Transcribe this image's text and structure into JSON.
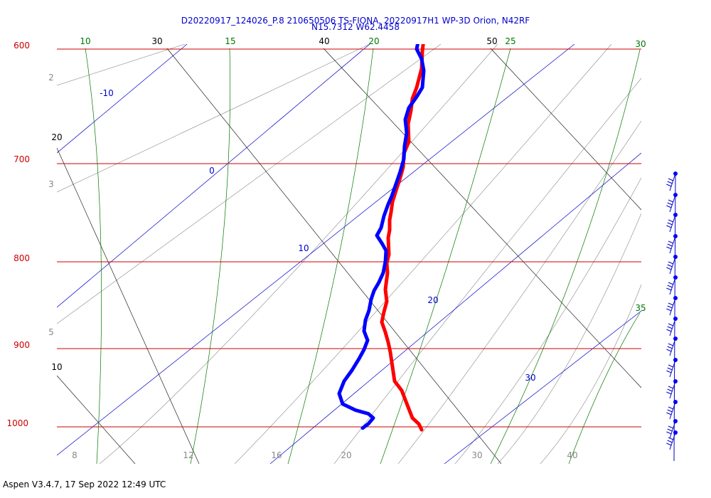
{
  "chart_data": {
    "type": "skew-t log-p sounding",
    "title_line1": "D20220917_124026_P.8 210650506 TS-FIONA, 20220917H1 WP-3D Orion, N42RF",
    "title_line2": "N15.7312 W62.4458",
    "pressure_levels": [
      "600",
      "700",
      "800",
      "900",
      "1000"
    ],
    "bottom_temperature_ticks": [
      "8",
      "12",
      "16",
      "20",
      "30",
      "40"
    ],
    "top_labels": [
      {
        "text": "10",
        "kind": "mixing_ratio"
      },
      {
        "text": "30",
        "kind": "isotherm"
      },
      {
        "text": "15",
        "kind": "mixing_ratio"
      },
      {
        "text": "40",
        "kind": "isotherm"
      },
      {
        "text": "20",
        "kind": "mixing_ratio"
      },
      {
        "text": "50",
        "kind": "isotherm"
      },
      {
        "text": "25",
        "kind": "mixing_ratio"
      },
      {
        "text": "30",
        "kind": "mixing_ratio"
      },
      {
        "text": "35",
        "kind": "mixing_ratio"
      }
    ],
    "left_labels": [
      "2",
      "3",
      "5",
      "20",
      "10"
    ],
    "adiabat_labels": [
      "-10",
      "0",
      "10",
      "20",
      "30"
    ],
    "series": [
      {
        "color": "#ff0000",
        "points": [
          [
            606,
            708
          ],
          [
            598,
            718
          ],
          [
            595,
            728
          ],
          [
            596,
            740
          ],
          [
            594,
            752
          ],
          [
            593,
            770
          ],
          [
            586,
            790
          ],
          [
            580,
            802
          ],
          [
            578,
            815
          ],
          [
            574,
            830
          ],
          [
            575,
            850
          ],
          [
            568,
            864
          ],
          [
            567,
            880
          ],
          [
            562,
            895
          ],
          [
            557,
            908
          ],
          [
            552,
            922
          ],
          [
            550,
            935
          ],
          [
            548,
            945
          ],
          [
            548,
            958
          ],
          [
            546,
            968
          ],
          [
            547,
            990
          ],
          [
            544,
            1002
          ],
          [
            545,
            1015
          ],
          [
            542,
            1038
          ],
          [
            544,
            1055
          ],
          [
            540,
            1070
          ],
          [
            537,
            1085
          ],
          [
            542,
            1100
          ],
          [
            546,
            1115
          ],
          [
            549,
            1130
          ],
          [
            551,
            1145
          ],
          [
            553,
            1160
          ],
          [
            555,
            1175
          ],
          [
            565,
            1190
          ],
          [
            570,
            1205
          ],
          [
            575,
            1220
          ],
          [
            580,
            1235
          ],
          [
            589,
            1245
          ],
          [
            593,
            1255
          ]
        ]
      },
      {
        "color": "#0000ff",
        "points": [
          [
            604,
            708
          ],
          [
            595,
            722
          ],
          [
            590,
            736
          ],
          [
            586,
            750
          ],
          [
            593,
            760
          ],
          [
            596,
            772
          ],
          [
            594,
            790
          ],
          [
            586,
            800
          ],
          [
            575,
            812
          ],
          [
            570,
            825
          ],
          [
            572,
            840
          ],
          [
            569,
            855
          ],
          [
            568,
            870
          ],
          [
            563,
            885
          ],
          [
            557,
            900
          ],
          [
            551,
            915
          ],
          [
            546,
            925
          ],
          [
            540,
            940
          ],
          [
            536,
            955
          ],
          [
            530,
            965
          ],
          [
            537,
            975
          ],
          [
            543,
            985
          ],
          [
            542,
            1000
          ],
          [
            539,
            1015
          ],
          [
            533,
            1028
          ],
          [
            526,
            1040
          ],
          [
            522,
            1052
          ],
          [
            519,
            1068
          ],
          [
            514,
            1082
          ],
          [
            512,
            1098
          ],
          [
            517,
            1112
          ],
          [
            512,
            1126
          ],
          [
            505,
            1140
          ],
          [
            495,
            1158
          ],
          [
            484,
            1175
          ],
          [
            477,
            1195
          ],
          [
            482,
            1212
          ],
          [
            500,
            1222
          ],
          [
            518,
            1228
          ],
          [
            525,
            1235
          ],
          [
            518,
            1245
          ],
          [
            510,
            1252
          ]
        ]
      }
    ],
    "wind_barbs": [
      [
        950,
        244
      ],
      [
        950,
        274
      ],
      [
        950,
        302
      ],
      [
        950,
        332
      ],
      [
        950,
        361
      ],
      [
        950,
        390
      ],
      [
        950,
        419
      ],
      [
        950,
        448
      ],
      [
        950,
        476
      ],
      [
        950,
        506
      ],
      [
        950,
        536
      ],
      [
        950,
        565
      ],
      [
        950,
        592
      ],
      [
        950,
        608
      ]
    ],
    "software_version": "Aspen V3.4.7, 17 Sep 2022  12:49 UTC",
    "colors": {
      "isobar": "#cc0000",
      "isotherm": "#000000",
      "dry_adiabat": "#0000cc",
      "moist_adiabat": "#888888",
      "mixing_ratio": "#007700",
      "title": "#0000cc"
    }
  }
}
